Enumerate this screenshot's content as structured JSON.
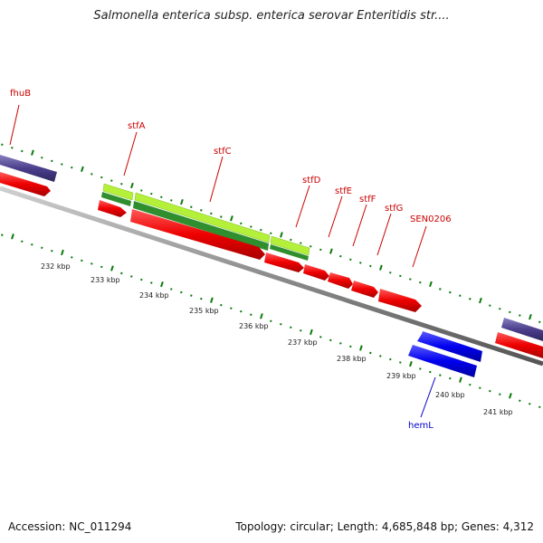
{
  "title": "Salmonella enterica subsp. enterica serovar Enteritidis str....",
  "accession": "Accession: NC_011294",
  "info": "Topology: circular; Length: 4,685,848 bp; Genes: 4,312",
  "colors": {
    "backbone": "#888888",
    "tick": "#0a7a0a",
    "cds_red": "#ff0000",
    "cds_blue": "#0000ff",
    "cds_purple": "#4b3f8c",
    "green_light": "#a6e62a",
    "green_dark": "#1f8a1f",
    "label_red": "#cc0000",
    "label_blue": "#0000cc"
  },
  "kbp_labels": [
    "232 kbp",
    "233 kbp",
    "234 kbp",
    "235 kbp",
    "236 kbp",
    "237 kbp",
    "238 kbp",
    "239 kbp",
    "240 kbp",
    "241 kbp"
  ],
  "gene_labels": [
    {
      "name": "fhuB",
      "strand": "forward"
    },
    {
      "name": "stfA",
      "strand": "forward"
    },
    {
      "name": "stfC",
      "strand": "forward"
    },
    {
      "name": "stfD",
      "strand": "forward"
    },
    {
      "name": "stfE",
      "strand": "forward"
    },
    {
      "name": "stfF",
      "strand": "forward"
    },
    {
      "name": "stfG",
      "strand": "forward"
    },
    {
      "name": "SEN0206",
      "strand": "forward"
    },
    {
      "name": "hemL",
      "strand": "reverse"
    }
  ]
}
